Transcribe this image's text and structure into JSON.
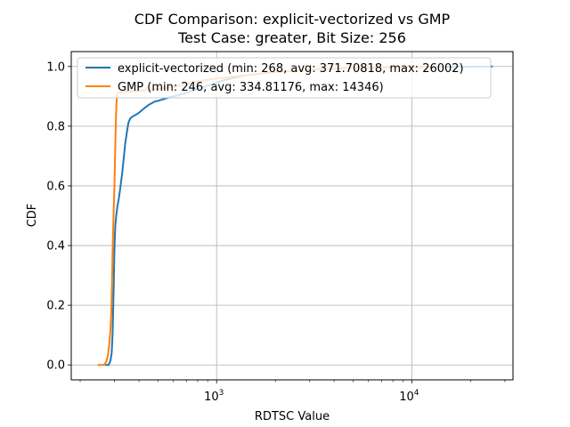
{
  "chart_data": {
    "type": "line",
    "title_line1": "CDF Comparison: explicit-vectorized vs GMP",
    "title_line2": "Test Case: greater, Bit Size: 256",
    "xlabel": "RDTSC Value",
    "ylabel": "CDF",
    "x_scale": "log",
    "xlim": [
      180,
      33000
    ],
    "ylim": [
      -0.05,
      1.05
    ],
    "grid": true,
    "legend_position": "top-left",
    "x_major_ticks": [
      {
        "value": 1000,
        "base": "10",
        "exp": "3"
      },
      {
        "value": 10000,
        "base": "10",
        "exp": "4"
      }
    ],
    "x_minor_ticks": [
      200,
      300,
      400,
      500,
      600,
      700,
      800,
      900,
      2000,
      3000,
      4000,
      5000,
      6000,
      7000,
      8000,
      9000,
      20000,
      30000
    ],
    "y_ticks": [
      "0.0",
      "0.2",
      "0.4",
      "0.6",
      "0.8",
      "1.0"
    ],
    "series": [
      {
        "name": "explicit-vectorized (min: 268, avg: 371.70818, max: 26002)",
        "color": "#1f77b4",
        "points": [
          [
            268,
            0.0
          ],
          [
            280,
            0.0
          ],
          [
            286,
            0.015
          ],
          [
            290,
            0.04
          ],
          [
            293,
            0.1
          ],
          [
            295,
            0.18
          ],
          [
            297,
            0.26
          ],
          [
            299,
            0.36
          ],
          [
            301,
            0.43
          ],
          [
            303,
            0.47
          ],
          [
            306,
            0.5
          ],
          [
            310,
            0.53
          ],
          [
            316,
            0.56
          ],
          [
            322,
            0.6
          ],
          [
            328,
            0.64
          ],
          [
            334,
            0.69
          ],
          [
            340,
            0.74
          ],
          [
            347,
            0.78
          ],
          [
            353,
            0.81
          ],
          [
            360,
            0.825
          ],
          [
            370,
            0.832
          ],
          [
            385,
            0.838
          ],
          [
            400,
            0.845
          ],
          [
            420,
            0.857
          ],
          [
            450,
            0.872
          ],
          [
            480,
            0.882
          ],
          [
            520,
            0.888
          ],
          [
            560,
            0.895
          ],
          [
            620,
            0.902
          ],
          [
            700,
            0.912
          ],
          [
            800,
            0.925
          ],
          [
            950,
            0.94
          ],
          [
            1100,
            0.955
          ],
          [
            1400,
            0.97
          ],
          [
            2000,
            0.982
          ],
          [
            3000,
            0.99
          ],
          [
            5000,
            0.995
          ],
          [
            10000,
            0.998
          ],
          [
            26002,
            1.0
          ]
        ]
      },
      {
        "name": "GMP (min: 246, avg: 334.81176, max: 14346)",
        "color": "#ff7f0e",
        "points": [
          [
            246,
            0.0
          ],
          [
            265,
            0.0
          ],
          [
            272,
            0.01
          ],
          [
            277,
            0.03
          ],
          [
            282,
            0.07
          ],
          [
            286,
            0.12
          ],
          [
            289,
            0.18
          ],
          [
            291,
            0.27
          ],
          [
            293,
            0.37
          ],
          [
            295,
            0.45
          ],
          [
            297,
            0.52
          ],
          [
            299,
            0.58
          ],
          [
            301,
            0.66
          ],
          [
            303,
            0.75
          ],
          [
            305,
            0.83
          ],
          [
            307,
            0.88
          ],
          [
            309,
            0.905
          ],
          [
            312,
            0.912
          ],
          [
            330,
            0.915
          ],
          [
            400,
            0.918
          ],
          [
            500,
            0.925
          ],
          [
            600,
            0.932
          ],
          [
            800,
            0.95
          ],
          [
            1000,
            0.96
          ],
          [
            1500,
            0.972
          ],
          [
            2000,
            0.982
          ],
          [
            3000,
            0.99
          ],
          [
            5000,
            0.995
          ],
          [
            8000,
            0.998
          ],
          [
            14346,
            1.0
          ]
        ]
      }
    ]
  }
}
